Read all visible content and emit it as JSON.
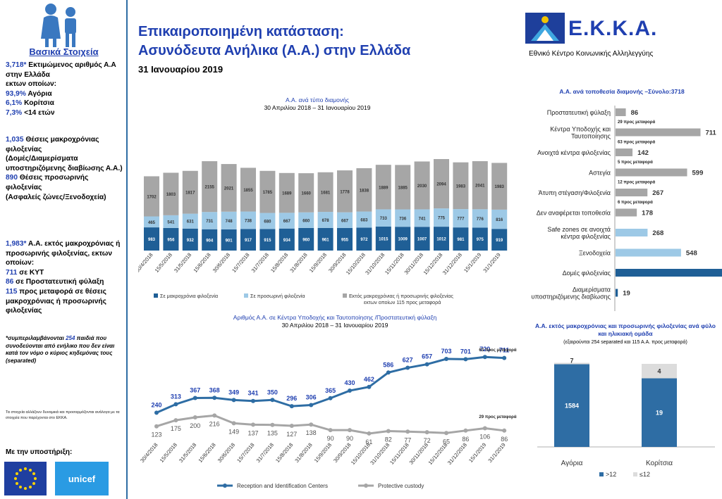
{
  "sidebar": {
    "title": "Βασικά Στοιχεία",
    "b1": {
      "v1": "3,718*",
      "t1": " Εκτιμώμενος αριθμός Α.Α στην Ελλάδα",
      "t2": "εκτων οποίων:",
      "v2": "93,9%",
      "t3": " Αγόρια",
      "v3": "6,1%",
      "t4": " Κορίτσια",
      "v4": "7,3%",
      "t5": " <14 ετών"
    },
    "b2": {
      "v1": "1,035",
      "t1": " Θέσεις μακροχρόνιας φιλοξενίας",
      "t2": "(Δομές/Διαμερίσματα υποστηριζόμενης διαβίωσης Α.Α.)",
      "v2": "890",
      "t3": " Θέσεις προσωρινής φιλοξενίας",
      "t4": "(Ασφαλείς ζώνες/Ξενοδοχεία)"
    },
    "b3": {
      "v1": "1,983*",
      "t1": " Α.Α. εκτός μακροχρόνιας ή προσωρινής φιλοξενίας, εκτων οποίων:",
      "v2": "711",
      "t2": " σε ΚΥΤ",
      "v3": "86",
      "t3": " σε Προστατευτική φύλαξη",
      "v4": "115",
      "t4": " προς μεταφορά σε θέσεις μακροχρόνιας ή προσωρινής φιλοξενίας"
    },
    "note_a": "*συμπεριλαμβάνονται ",
    "note_v": "254",
    "note_b": " παιδιά που συνοδεύονται από ενήλικο που δεν είναι κατά τον νόμο ο κύριος κηδεμόνας τους (separated)",
    "small": "Τα στοιχεία αλλάζουν δυναμικά και προσαρμόζονται ανάλογα με τα στοιχεία που παρέχονται στο ΕΚΚΑ.",
    "support": "Με την υποστήριξη:",
    "unicef": "unicef"
  },
  "header": {
    "title1": "Επικαιροποιημένη κατάσταση:",
    "title2": "Ασυνόδευτα Ανήλικα (Α.Α.) στην Ελλάδα",
    "date": "31 Ιανουαρίου 2019",
    "logo_name": "Ε.Κ.Κ.Α.",
    "logo_sub": "Εθνικό Κέντρο Κοινωνικής Αλληλεγγύης"
  },
  "colors": {
    "primary": "#1f3fb0",
    "dark_blue": "#1f5f96",
    "mid_blue": "#2e6da4",
    "light_blue": "#9dc9e6",
    "gray": "#a6a6a6",
    "light_gray": "#dcdcdc"
  },
  "chart_data": [
    {
      "type": "bar",
      "stacked": true,
      "title": "Α.Α. ανά τύπο διαμονής",
      "subtitle": "30 Απριλίου 2018 – 31 Ιανουαρίου 2019",
      "categories": [
        "30/4/2018",
        "15/5/2018",
        "31/5/2018",
        "15/6/2018",
        "30/6/2018",
        "15/7/2018",
        "31/7/2018",
        "15/8/2018",
        "31/8/2018",
        "15/9/2018",
        "30/9/2018",
        "15/10/2018",
        "31/10/2018",
        "15/11/2018",
        "30/11/2018",
        "15/12/2018",
        "31/12/2018",
        "15/1/2019",
        "31/1/2019"
      ],
      "series": [
        {
          "name": "Σε μακροχρόνια φιλοξενία",
          "values": [
            983,
            956,
            932,
            904,
            901,
            917,
            915,
            934,
            960,
            961,
            955,
            972,
            1015,
            1009,
            1007,
            1012,
            981,
            975,
            919
          ],
          "color": "#1f5f96"
        },
        {
          "name": "Σε προσωρινή φιλοξενία",
          "values": [
            465,
            541,
            631,
            731,
            748,
            738,
            680,
            667,
            660,
            678,
            667,
            683,
            733,
            736,
            741,
            775,
            777,
            776,
            816
          ],
          "color": "#9dc9e6"
        },
        {
          "name": "Εκτός μακροχρόνιας ή προσωρινής φιλοξενίας εκτων οποίων 115 προς μεταφορά",
          "values": [
            1702,
            1803,
            1817,
            2155,
            2021,
            1855,
            1785,
            1689,
            1660,
            1681,
            1778,
            1838,
            1889,
            1885,
            2030,
            2094,
            1983,
            2041,
            1983
          ],
          "color": "#a6a6a6"
        }
      ],
      "legend": "bottom"
    },
    {
      "type": "bar",
      "orientation": "horizontal",
      "title": "Α.Α. ανά τοποθεσία διαμονής –Σύνολο:",
      "title_value": "3718",
      "categories": [
        "Προστατευτική φύλαξη",
        "Κέντρα Υποδοχής και Ταυτοποίησης",
        "Ανοιχτά κέντρα φιλοξενίας",
        "Αστεγία",
        "Άτυπη στέγαση/Φιλοξενία",
        "Δεν αναφέρεται τοποθεσία",
        "Safe zones σε ανοιχτά κέντρα φιλοξενίας",
        "Ξενοδοχεία",
        "Δομές φιλοξενίας",
        "Διαμερίσματα υποστηριζόμενης διαβίωσης"
      ],
      "values": [
        86,
        711,
        142,
        599,
        267,
        178,
        268,
        548,
        900,
        19
      ],
      "notes": [
        "29 προς μεταφορά",
        "63 προς μεταφορά",
        "5 προς μεταφορά",
        "12 προς μεταφορά",
        "6 προς μεταφορά",
        "",
        "",
        "",
        "",
        ""
      ],
      "colors": [
        "#a6a6a6",
        "#a6a6a6",
        "#a6a6a6",
        "#a6a6a6",
        "#a6a6a6",
        "#a6a6a6",
        "#9dc9e6",
        "#9dc9e6",
        "#1f5f96",
        "#1f5f96"
      ]
    },
    {
      "type": "line",
      "title": "Αριθμός Α.Α. σε Κέντρα Υποδοχής και Ταυτοποίησης /Προστατευτική φύλαξη",
      "subtitle": "30 Απριλίου 2018 – 31 Ιανουαρίου 2019",
      "categories": [
        "30/4/2018",
        "15/5/2018",
        "31/5/2018",
        "15/6/2018",
        "30/6/2018",
        "15/7/2018",
        "31/7/2018",
        "15/8/2018",
        "31/8/2018",
        "15/9/2018",
        "30/9/2018",
        "15/10/2018",
        "31/10/2018",
        "15/11/2018",
        "30/11/2018",
        "15/12/2018",
        "31/12/2018",
        "15/1/2019",
        "31/1/2019"
      ],
      "series": [
        {
          "name": "Reception and Identification Centers",
          "values": [
            240,
            313,
            367,
            368,
            349,
            341,
            350,
            296,
            306,
            365,
            430,
            462,
            586,
            627,
            657,
            703,
            701,
            720,
            711
          ],
          "color": "#2e6da4"
        },
        {
          "name": "Protective custody",
          "values": [
            123,
            175,
            200,
            216,
            149,
            137,
            135,
            127,
            138,
            90,
            90,
            61,
            82,
            77,
            72,
            65,
            86,
            106,
            86
          ],
          "color": "#a6a6a6"
        }
      ],
      "annotations": [
        "63 προς μεταφορά",
        "29 προς μεταφορά"
      ],
      "legend": "bottom"
    },
    {
      "type": "bar",
      "stacked": true,
      "title": "Α.Α. εκτός μακροχρόνιας και προσωρινής φιλοξενίας ανά φύλο και ηλικιακή ομάδα",
      "subtitle": "(εξαιρούνται 254 separated και 115 Α.Α. προς μεταφορά)",
      "categories": [
        "Αγόρια",
        "Κορίτσια"
      ],
      "series": [
        {
          "name": ">12",
          "values": [
            1584,
            19
          ],
          "color": "#2e6da4"
        },
        {
          "name": "≤12",
          "values": [
            7,
            4
          ],
          "color": "#dcdcdc"
        }
      ],
      "legend": "bottom"
    }
  ]
}
